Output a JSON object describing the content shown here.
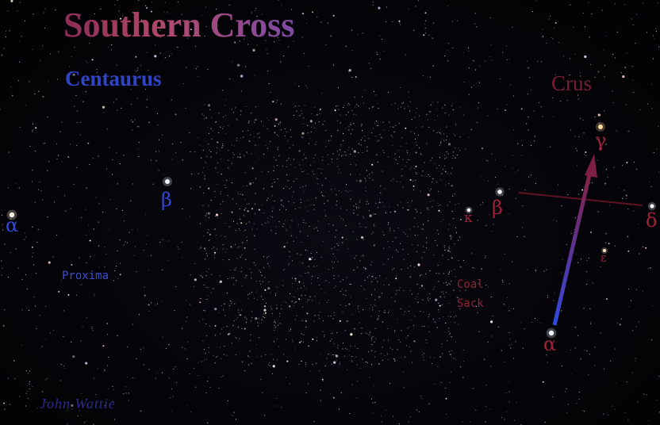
{
  "title": "Southern Cross",
  "centaurus": {
    "name": "Centaurus",
    "alpha": "α",
    "beta": "β",
    "proxima": "Proxima"
  },
  "crus": {
    "name": "Crus",
    "alpha": "α",
    "beta": "β",
    "gamma": "γ",
    "delta": "δ",
    "epsilon": "ε",
    "kappa": "κ",
    "coal_sack_line1": "Coal",
    "coal_sack_line2": "Sack"
  },
  "credit": "John Wattie",
  "colors": {
    "background": "#040307",
    "title_red": "#a8425f",
    "title_purple": "#7d4aa5",
    "centaurus_blue": "#2f45c8",
    "crus_red": "#7a1e36",
    "pointer_blue": "#2f49e0",
    "pointer_red": "#8a1f3f",
    "cross_bar": "#5c1424"
  }
}
